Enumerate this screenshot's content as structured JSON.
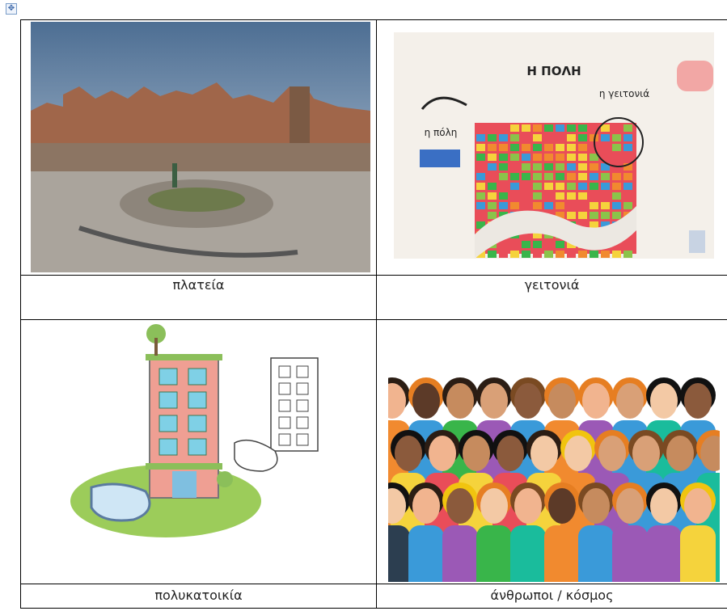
{
  "table": {
    "rows": [
      [
        {
          "caption": "πλατεία"
        },
        {
          "caption": "γειτονιά",
          "image_texts": {
            "title": "Η ΠΟΛΗ",
            "neighborhood": "η γειτονιά",
            "city": "η πόλη"
          }
        }
      ],
      [
        {
          "caption": "πολυκατοικία"
        },
        {
          "caption": "άνθρωποι / κόσμος"
        }
      ]
    ]
  }
}
